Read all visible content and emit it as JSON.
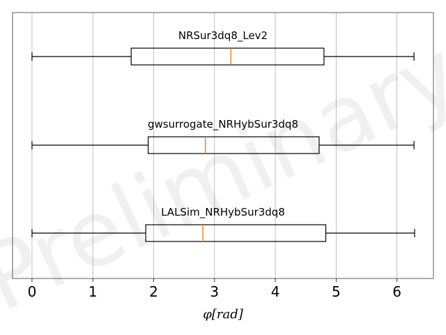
{
  "chart_data": {
    "type": "boxplot",
    "orientation": "horizontal",
    "xlabel": "φ[rad]",
    "xlim": [
      -0.32,
      6.6
    ],
    "xticks": [
      0,
      1,
      2,
      3,
      4,
      5,
      6
    ],
    "grid": "vertical",
    "watermark": "Preliminary",
    "box_color": "#000000",
    "median_color": "#ff7f0e",
    "series": [
      {
        "name": "NRSur3dq8_Lev2",
        "whisker_low": 0.0,
        "q1": 1.63,
        "median": 3.27,
        "q3": 4.8,
        "whisker_high": 6.28
      },
      {
        "name": "gwsurrogate_NRHybSur3dq8",
        "whisker_low": 0.0,
        "q1": 1.91,
        "median": 2.85,
        "q3": 4.72,
        "whisker_high": 6.28
      },
      {
        "name": "LALSim_NRHybSur3dq8",
        "whisker_low": 0.0,
        "q1": 1.87,
        "median": 2.81,
        "q3": 4.83,
        "whisker_high": 6.29
      }
    ]
  }
}
